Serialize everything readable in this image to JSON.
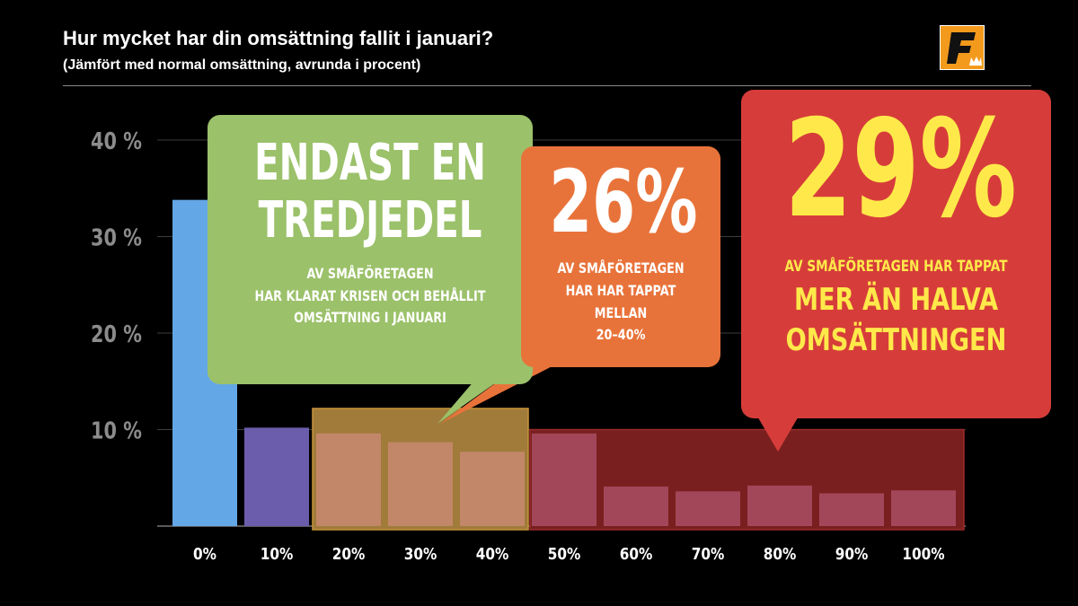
{
  "header": {
    "title": "Hur mycket har din omsättning fallit i januari?",
    "subtitle": "(Jämfört med normal omsättning, avrunda i procent)"
  },
  "colors": {
    "bar_0": "#64a7e6",
    "bar_10": "#6b5dab",
    "bars_20_40": "#c88a72",
    "bars_50_100": "#8e3147",
    "bracket_mid": "#a07b3a",
    "bracket_high": "#7a1f1f",
    "callout_green": "#9bc16a",
    "callout_orange": "#e8733a",
    "callout_red": "#d63d3a",
    "highlight_yellow": "#ffe94a"
  },
  "callouts": {
    "green": {
      "big_line1": "ENDAST EN",
      "big_line2": "TREDJEDEL",
      "line1": "AV SMÅFÖRETAGEN",
      "line2": "HAR KLARAT KRISEN OCH BEHÅLLIT",
      "line3": "OMSÄTTNING I JANUARI"
    },
    "orange": {
      "big": "26%",
      "line1": "AV SMÅFÖRETAGEN",
      "line2": "HAR HAR TAPPAT MELLAN",
      "line3": "20–40%"
    },
    "red": {
      "big": "29%",
      "line1": "AV SMÅFÖRETAGEN HAR TAPPAT",
      "emph1": "MER ÄN HALVA",
      "emph2": "OMSÄTTNINGEN"
    }
  },
  "chart_data": {
    "type": "bar",
    "categories": [
      "0%",
      "10%",
      "20%",
      "30%",
      "40%",
      "50%",
      "60%",
      "70%",
      "80%",
      "90%",
      "100%"
    ],
    "values": [
      33.8,
      10.2,
      9.6,
      8.7,
      7.7,
      9.6,
      4.1,
      3.6,
      4.2,
      3.4,
      3.7
    ],
    "y_ticks": [
      "10 %",
      "20 %",
      "30 %",
      "40 %"
    ],
    "ylim": [
      0,
      40
    ],
    "grid": true,
    "xlabel": "",
    "ylabel": ""
  }
}
